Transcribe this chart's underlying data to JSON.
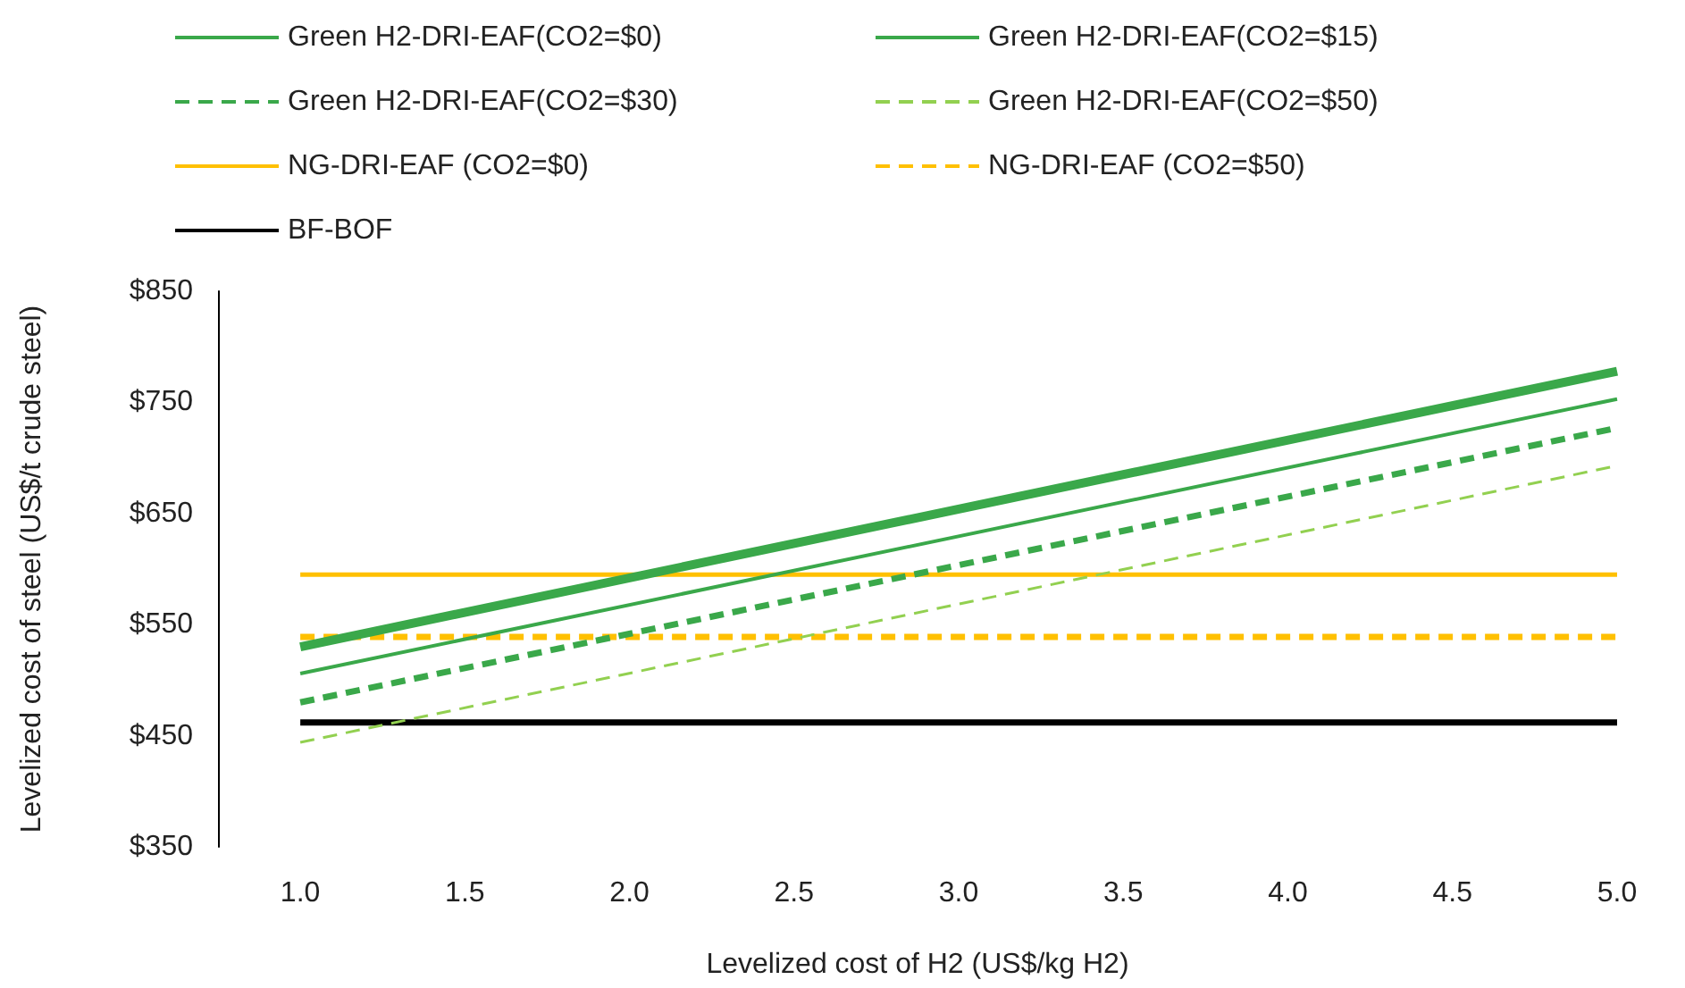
{
  "chart_data": {
    "type": "line",
    "xlabel": "Levelized cost of H2 (US$/kg H2)",
    "ylabel": "Levelized cost of steel (US$/t crude steel)",
    "x": [
      1,
      5
    ],
    "series": [
      {
        "name": "Green H2-DRI-EAF(CO2=$0)",
        "color": "#3aa84a",
        "line_style": "solid",
        "values": [
          530,
          778
        ]
      },
      {
        "name": "Green H2-DRI-EAF(CO2=$15)",
        "color": "#3aa84a",
        "line_style": "solid",
        "values": [
          506,
          753
        ]
      },
      {
        "name": "Green H2-DRI-EAF(CO2=$30)",
        "color": "#3aa84a",
        "line_style": "dashed",
        "values": [
          480,
          727
        ]
      },
      {
        "name": "Green H2-DRI-EAF(CO2=$50)",
        "color": "#92d050",
        "line_style": "dashed",
        "values": [
          444,
          693
        ]
      },
      {
        "name": "NG-DRI-EAF (CO2=$0)",
        "color": "#ffc000",
        "line_style": "solid",
        "values": [
          595,
          595
        ]
      },
      {
        "name": "NG-DRI-EAF (CO2=$50)",
        "color": "#ffc000",
        "line_style": "dashed",
        "values": [
          539,
          539
        ]
      },
      {
        "name": "BF-BOF",
        "color": "#000000",
        "line_style": "solid",
        "values": [
          462,
          462
        ]
      }
    ],
    "xlim": [
      0.75,
      5
    ],
    "xticks": [
      {
        "value": 1,
        "label": "1.0"
      },
      {
        "value": 1.5,
        "label": "1.5"
      },
      {
        "value": 2,
        "label": "2.0"
      },
      {
        "value": 2.5,
        "label": "2.5"
      },
      {
        "value": 3,
        "label": "3.0"
      },
      {
        "value": 3.5,
        "label": "3.5"
      },
      {
        "value": 4,
        "label": "4.0"
      },
      {
        "value": 4.5,
        "label": "4.5"
      },
      {
        "value": 5,
        "label": "5.0"
      }
    ],
    "ylim": [
      350,
      850
    ],
    "yticks": [
      {
        "value": 350,
        "label": "$350"
      },
      {
        "value": 450,
        "label": "$450"
      },
      {
        "value": 550,
        "label": "$550"
      },
      {
        "value": 650,
        "label": "$650"
      },
      {
        "value": 750,
        "label": "$750"
      },
      {
        "value": 850,
        "label": "$850"
      }
    ],
    "grid": false,
    "legend": "top",
    "marker": "none"
  }
}
